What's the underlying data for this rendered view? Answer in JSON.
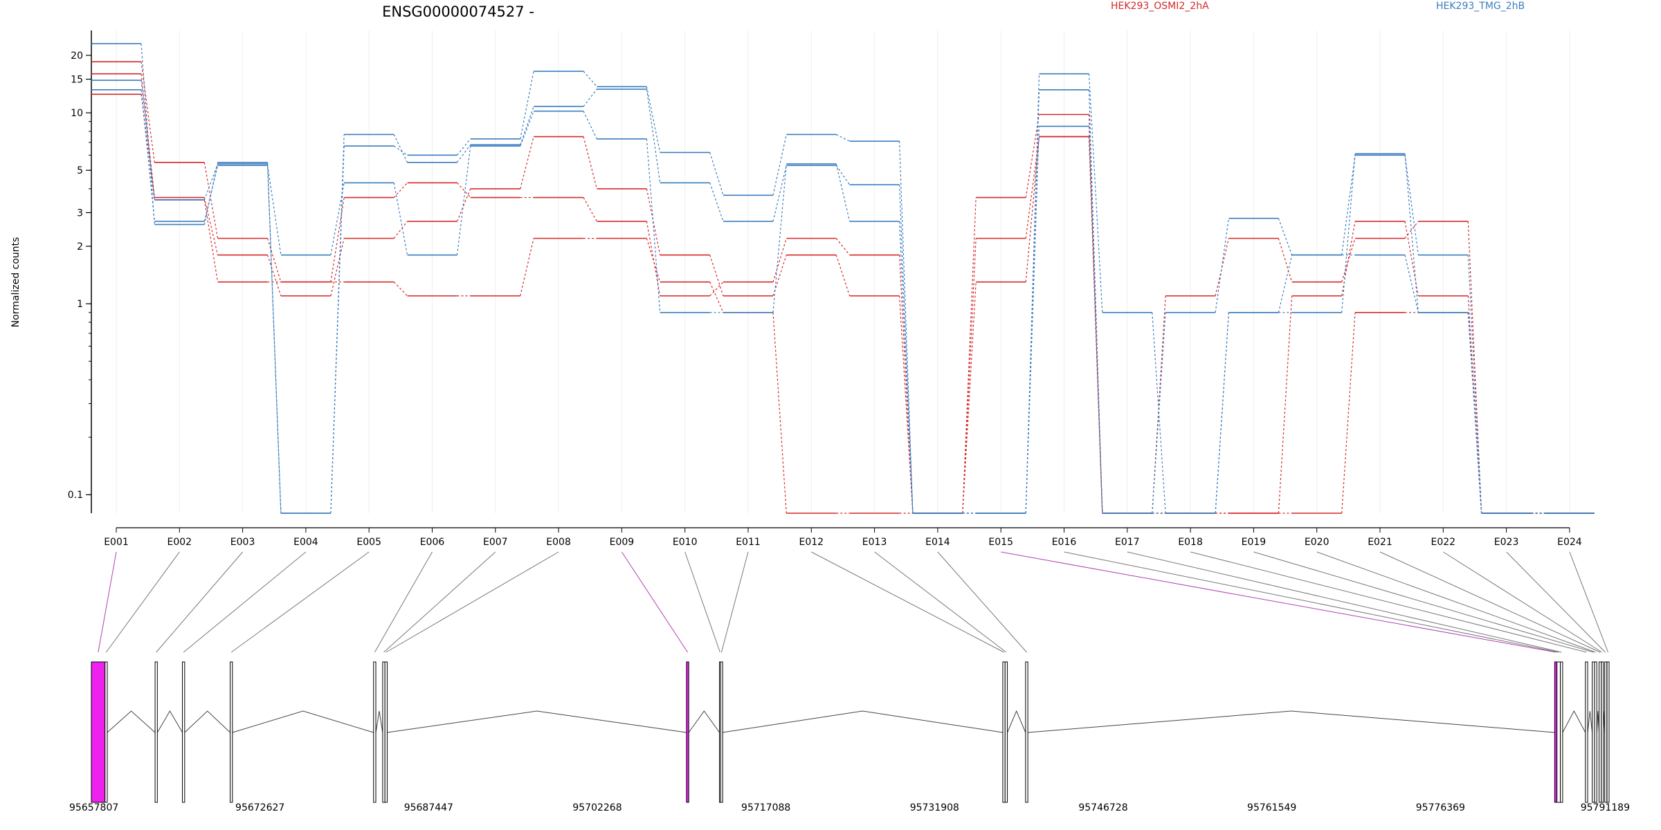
{
  "chart_data": {
    "type": "line",
    "title": "ENSG00000074527 -",
    "ylabel": "Normalized counts",
    "xlabel": "",
    "y_scale": "log",
    "ylim": [
      0.08,
      27
    ],
    "yticks": [
      0.1,
      1,
      2,
      3,
      5,
      10,
      15,
      20
    ],
    "grid": "vertical",
    "legend_position": "top",
    "categories": [
      "E001",
      "E002",
      "E003",
      "E004",
      "E005",
      "E006",
      "E007",
      "E008",
      "E009",
      "E010",
      "E011",
      "E012",
      "E013",
      "E014",
      "E015",
      "E016",
      "E017",
      "E018",
      "E019",
      "E020",
      "E021",
      "E022",
      "E023",
      "E024"
    ],
    "series": [
      {
        "name": "HEK293_OSMI2_2hA",
        "color": "#d62728",
        "values": [
          18.5,
          5.5,
          2.2,
          1.3,
          1.3,
          1.1,
          1.1,
          2.2,
          2.2,
          1.3,
          0.9,
          0.08,
          0.08,
          0.08,
          1.3,
          7.5,
          0.08,
          0.08,
          0.08,
          0.08,
          0.9,
          0.9,
          0.08,
          0.08
        ]
      },
      {
        "name": "HEK293_OSMI2_2hA",
        "color": "#d62728",
        "values": [
          16.0,
          3.6,
          1.8,
          1.1,
          2.2,
          2.7,
          4.0,
          7.5,
          4.0,
          1.8,
          1.1,
          1.8,
          1.1,
          0.08,
          2.2,
          7.5,
          0.08,
          1.1,
          2.2,
          1.3,
          2.2,
          2.7,
          0.08,
          0.08
        ]
      },
      {
        "name": "HEK293_OSMI2_2hA",
        "color": "#d62728",
        "values": [
          12.5,
          3.5,
          1.3,
          1.3,
          3.6,
          4.3,
          3.6,
          3.6,
          2.7,
          1.1,
          1.3,
          2.2,
          1.8,
          0.08,
          3.6,
          9.8,
          0.08,
          0.08,
          0.08,
          1.1,
          2.7,
          1.1,
          0.08,
          0.08
        ]
      },
      {
        "name": "HEK293_TMG_2hB",
        "color": "#3a7dbf",
        "values": [
          23.0,
          2.6,
          5.5,
          0.08,
          6.7,
          6.0,
          7.3,
          16.5,
          13.7,
          6.2,
          3.7,
          7.7,
          7.1,
          0.08,
          0.08,
          16.0,
          0.9,
          0.08,
          0.9,
          1.8,
          6.0,
          1.8,
          0.08,
          0.08
        ]
      },
      {
        "name": "HEK293_TMG_2hB",
        "color": "#3a7dbf",
        "values": [
          14.8,
          3.5,
          5.4,
          0.08,
          7.7,
          5.5,
          6.8,
          10.8,
          13.3,
          4.3,
          2.7,
          5.3,
          4.2,
          0.08,
          0.08,
          13.2,
          0.08,
          0.9,
          2.8,
          1.8,
          1.8,
          0.9,
          0.08,
          0.08
        ]
      },
      {
        "name": "HEK293_TMG_2hB",
        "color": "#3a7dbf",
        "values": [
          13.2,
          2.7,
          5.3,
          1.8,
          4.3,
          1.8,
          6.7,
          10.2,
          7.3,
          0.9,
          0.9,
          5.4,
          2.7,
          0.08,
          0.08,
          8.5,
          0.08,
          0.08,
          0.9,
          0.9,
          6.1,
          0.9,
          0.08,
          0.08
        ]
      }
    ],
    "legend": [
      {
        "name": "HEK293_OSMI2_2hA",
        "color": "#d62728"
      },
      {
        "name": "HEK293_TMG_2hB",
        "color": "#3a7dbf"
      }
    ],
    "gene_model": {
      "coord_labels": [
        "95657807",
        "95672627",
        "95687447",
        "95702268",
        "95717088",
        "95731908",
        "95746728",
        "95761549",
        "95776369",
        "95791189"
      ],
      "start": 95657807,
      "end": 95791189,
      "highlight_color": "#ee22ee",
      "highlighted_exons": [
        "E001",
        "E009",
        "E015"
      ],
      "exons": [
        {
          "id": "E001",
          "start": 95657807,
          "end": 95659007
        },
        {
          "id": "E002",
          "start": 95659007,
          "end": 95659207
        },
        {
          "id": "E003",
          "start": 95663407,
          "end": 95663607
        },
        {
          "id": "E004",
          "start": 95665807,
          "end": 95666007
        },
        {
          "id": "E005",
          "start": 95670007,
          "end": 95670207
        },
        {
          "id": "E006",
          "start": 95682607,
          "end": 95682807
        },
        {
          "id": "E007",
          "start": 95683407,
          "end": 95683607
        },
        {
          "id": "E008",
          "start": 95683607,
          "end": 95683807
        },
        {
          "id": "E009",
          "start": 95710107,
          "end": 95710307
        },
        {
          "id": "E010",
          "start": 95713007,
          "end": 95713107
        },
        {
          "id": "E011",
          "start": 95713107,
          "end": 95713257
        },
        {
          "id": "E012",
          "start": 95737907,
          "end": 95738107
        },
        {
          "id": "E013",
          "start": 95738107,
          "end": 95738307
        },
        {
          "id": "E014",
          "start": 95739907,
          "end": 95740107
        },
        {
          "id": "E015",
          "start": 95786407,
          "end": 95786607
        },
        {
          "id": "E016",
          "start": 95786607,
          "end": 95786907
        },
        {
          "id": "E017",
          "start": 95786907,
          "end": 95787107
        },
        {
          "id": "E018",
          "start": 95789107,
          "end": 95789307
        },
        {
          "id": "E019",
          "start": 95789707,
          "end": 95789907
        },
        {
          "id": "E020",
          "start": 95789907,
          "end": 95790107
        },
        {
          "id": "E021",
          "start": 95790307,
          "end": 95790507
        },
        {
          "id": "E022",
          "start": 95790507,
          "end": 95790607
        },
        {
          "id": "E023",
          "start": 95790807,
          "end": 95790907
        },
        {
          "id": "E024",
          "start": 95791007,
          "end": 95791189
        }
      ]
    }
  }
}
